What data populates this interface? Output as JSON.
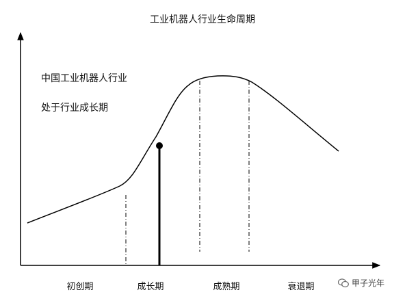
{
  "chart_data": {
    "type": "line",
    "title": "工业机器人行业生命周期",
    "annotations": [
      "中国工业机器人行业",
      "处于行业成长期"
    ],
    "stages": [
      "初创期",
      "成长期",
      "成熟期",
      "衰退期"
    ],
    "current_stage": "成长期",
    "grid": false,
    "line_color": "#000000"
  },
  "watermark": {
    "label": "甲子光年",
    "icon": "wechat-icon"
  }
}
